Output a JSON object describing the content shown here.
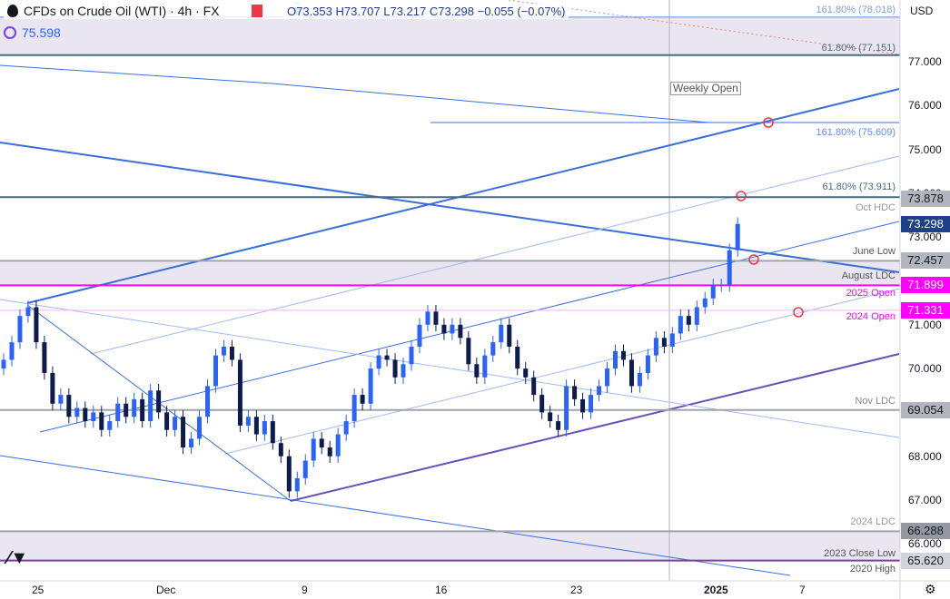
{
  "header": {
    "title": "CFDs on Crude Oil (WTI) · 4h · FX",
    "ohlc": "O73.353 H73.707 L73.217 C73.298 −0.055 (−0.07%)",
    "indicator_value": "75.598",
    "currency": "USD"
  },
  "colors": {
    "up": "#2962ff",
    "down": "#0d1b4d",
    "magenta": "#ff00ff",
    "band": "#e9e6f2",
    "trend": "#3a6fd8"
  },
  "levels": [
    {
      "label": "161.80% (78.018)",
      "price": 78.018,
      "color": "#7aa0e0"
    },
    {
      "label": "61.80% (77.151)",
      "price": 77.151,
      "color": "#4a6b7a"
    },
    {
      "label": "161.80% (75.609)",
      "price": 75.609,
      "color": "#5b8def"
    },
    {
      "label": "61.80% (73.911)",
      "price": 73.911,
      "color": "#4a6b7a"
    },
    {
      "label": "Oct HDC",
      "price": 73.878,
      "color": "#999"
    },
    {
      "label": "June Low",
      "price": 72.457,
      "color": "#555"
    },
    {
      "label": "August LDC",
      "price": 71.899,
      "color": "#555"
    },
    {
      "label": "2025 Open",
      "price": 71.899,
      "color": "#ff00ff"
    },
    {
      "label": "2024 Open",
      "price": 71.331,
      "color": "#ff00ff"
    },
    {
      "label": "Nov LDC",
      "price": 69.054,
      "color": "#888"
    },
    {
      "label": "2024 LDC",
      "price": 66.288,
      "color": "#999"
    },
    {
      "label": "2023 Close Low",
      "price": 65.62,
      "color": "#555"
    },
    {
      "label": "2020 High",
      "price": 65.62,
      "color": "#555"
    }
  ],
  "annotation": "Weekly Open",
  "price_badges": [
    {
      "value": "73.878",
      "price": 73.878,
      "bg": "#b2b5be",
      "fg": "#131722"
    },
    {
      "value": "73.298",
      "price": 73.298,
      "bg": "#1e3f8a",
      "fg": "#ffffff"
    },
    {
      "value": "72.457",
      "price": 72.457,
      "bg": "#b2b5be",
      "fg": "#131722"
    },
    {
      "value": "71.899",
      "price": 71.899,
      "bg": "#ff00ff",
      "fg": "#ffffff"
    },
    {
      "value": "71.331",
      "price": 71.331,
      "bg": "#ff00ff",
      "fg": "#ffffff"
    },
    {
      "value": "69.054",
      "price": 69.054,
      "bg": "#b2b5be",
      "fg": "#131722"
    },
    {
      "value": "66.288",
      "price": 66.288,
      "bg": "#9598a1",
      "fg": "#131722"
    },
    {
      "value": "65.620",
      "price": 65.62,
      "bg": "#d1d4dc",
      "fg": "#131722"
    }
  ],
  "chart_data": {
    "type": "candlestick",
    "title": "CFDs on Crude Oil (WTI) · 4h · FX",
    "ylim": [
      65.3,
      78.2
    ],
    "y_ticks": [
      "77.000",
      "76.000",
      "75.000",
      "74.000",
      "73.000",
      "72.000",
      "71.000",
      "70.000",
      "69.000",
      "68.000",
      "67.000",
      "66.000"
    ],
    "x_ticks": [
      "25",
      "Dec",
      "9",
      "16",
      "23",
      "2025",
      "7"
    ],
    "closes": [
      70.2,
      70.6,
      71.2,
      71.4,
      70.6,
      69.9,
      69.2,
      69.4,
      68.9,
      69.1,
      68.8,
      69.0,
      68.6,
      68.8,
      69.2,
      68.9,
      69.3,
      68.8,
      69.5,
      69.0,
      68.6,
      68.9,
      68.2,
      68.4,
      68.9,
      69.6,
      70.3,
      70.5,
      70.2,
      68.7,
      68.9,
      68.5,
      68.8,
      68.3,
      68.0,
      67.2,
      67.5,
      67.9,
      68.4,
      68.2,
      68.0,
      68.5,
      68.8,
      69.4,
      69.2,
      70.0,
      70.3,
      70.2,
      69.8,
      70.1,
      70.5,
      71.0,
      71.3,
      71.0,
      70.8,
      71.0,
      70.7,
      70.1,
      69.8,
      70.3,
      70.6,
      71.0,
      70.5,
      70.0,
      69.8,
      69.4,
      69.0,
      68.8,
      68.6,
      69.6,
      69.3,
      69.0,
      69.4,
      69.6,
      70.0,
      70.4,
      70.2,
      69.6,
      69.9,
      70.3,
      70.7,
      70.5,
      70.8,
      71.2,
      71.0,
      71.4,
      71.6,
      71.9,
      71.9,
      72.7,
      73.3
    ]
  }
}
